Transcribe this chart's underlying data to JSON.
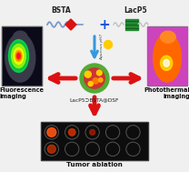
{
  "background_color": "#f0f0f0",
  "bsta_label": "BSTA",
  "lacp5_label": "LacP5",
  "center_label": "LacP5⊃BSTA@DSF",
  "fluor_label": "Fluorescence\nimaging",
  "photo_label": "Photothermal\nimaging",
  "tumor_label": "Tumor ablation",
  "arrow_color": "#dd1111",
  "plus_color": "#1155dd",
  "down_arrow1_color": "#3399dd",
  "nano_outer": "#55aa33",
  "nano_inner": "#cc3333",
  "fluor_bg": "#111122",
  "photo_bg": "#cc44bb",
  "tumor_bg": "#111111",
  "bsta_wave_color": "#7799cc",
  "bsta_diamond_color": "#dd1111",
  "lacp5_box_color": "#228822",
  "yellow_dot": "#ffcc00"
}
